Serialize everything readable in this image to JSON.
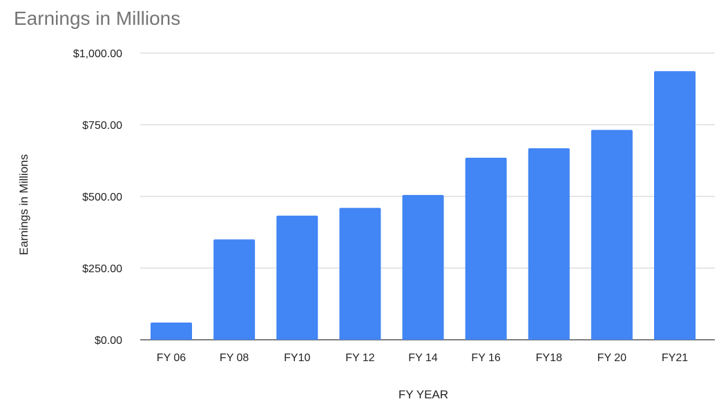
{
  "chart_data": {
    "type": "bar",
    "title": "Earnings in Millions",
    "xlabel": "FY YEAR",
    "ylabel": "Earnings in Millions",
    "categories": [
      "FY 06",
      "FY 08",
      "FY10",
      "FY 12",
      "FY 14",
      "FY 16",
      "FY18",
      "FY 20",
      "FY21"
    ],
    "series": [
      {
        "values": [
          60,
          350,
          433,
          460,
          505,
          635,
          668,
          732,
          937
        ],
        "color": "#4285f4"
      }
    ],
    "ylim": [
      0,
      1000
    ],
    "yticks": [
      0,
      250,
      500,
      750,
      1000
    ],
    "ytick_labels": [
      "$0.00",
      "$250.00",
      "$500.00",
      "$750.00",
      "$1,000.00"
    ],
    "grid": true,
    "legend": "none"
  }
}
